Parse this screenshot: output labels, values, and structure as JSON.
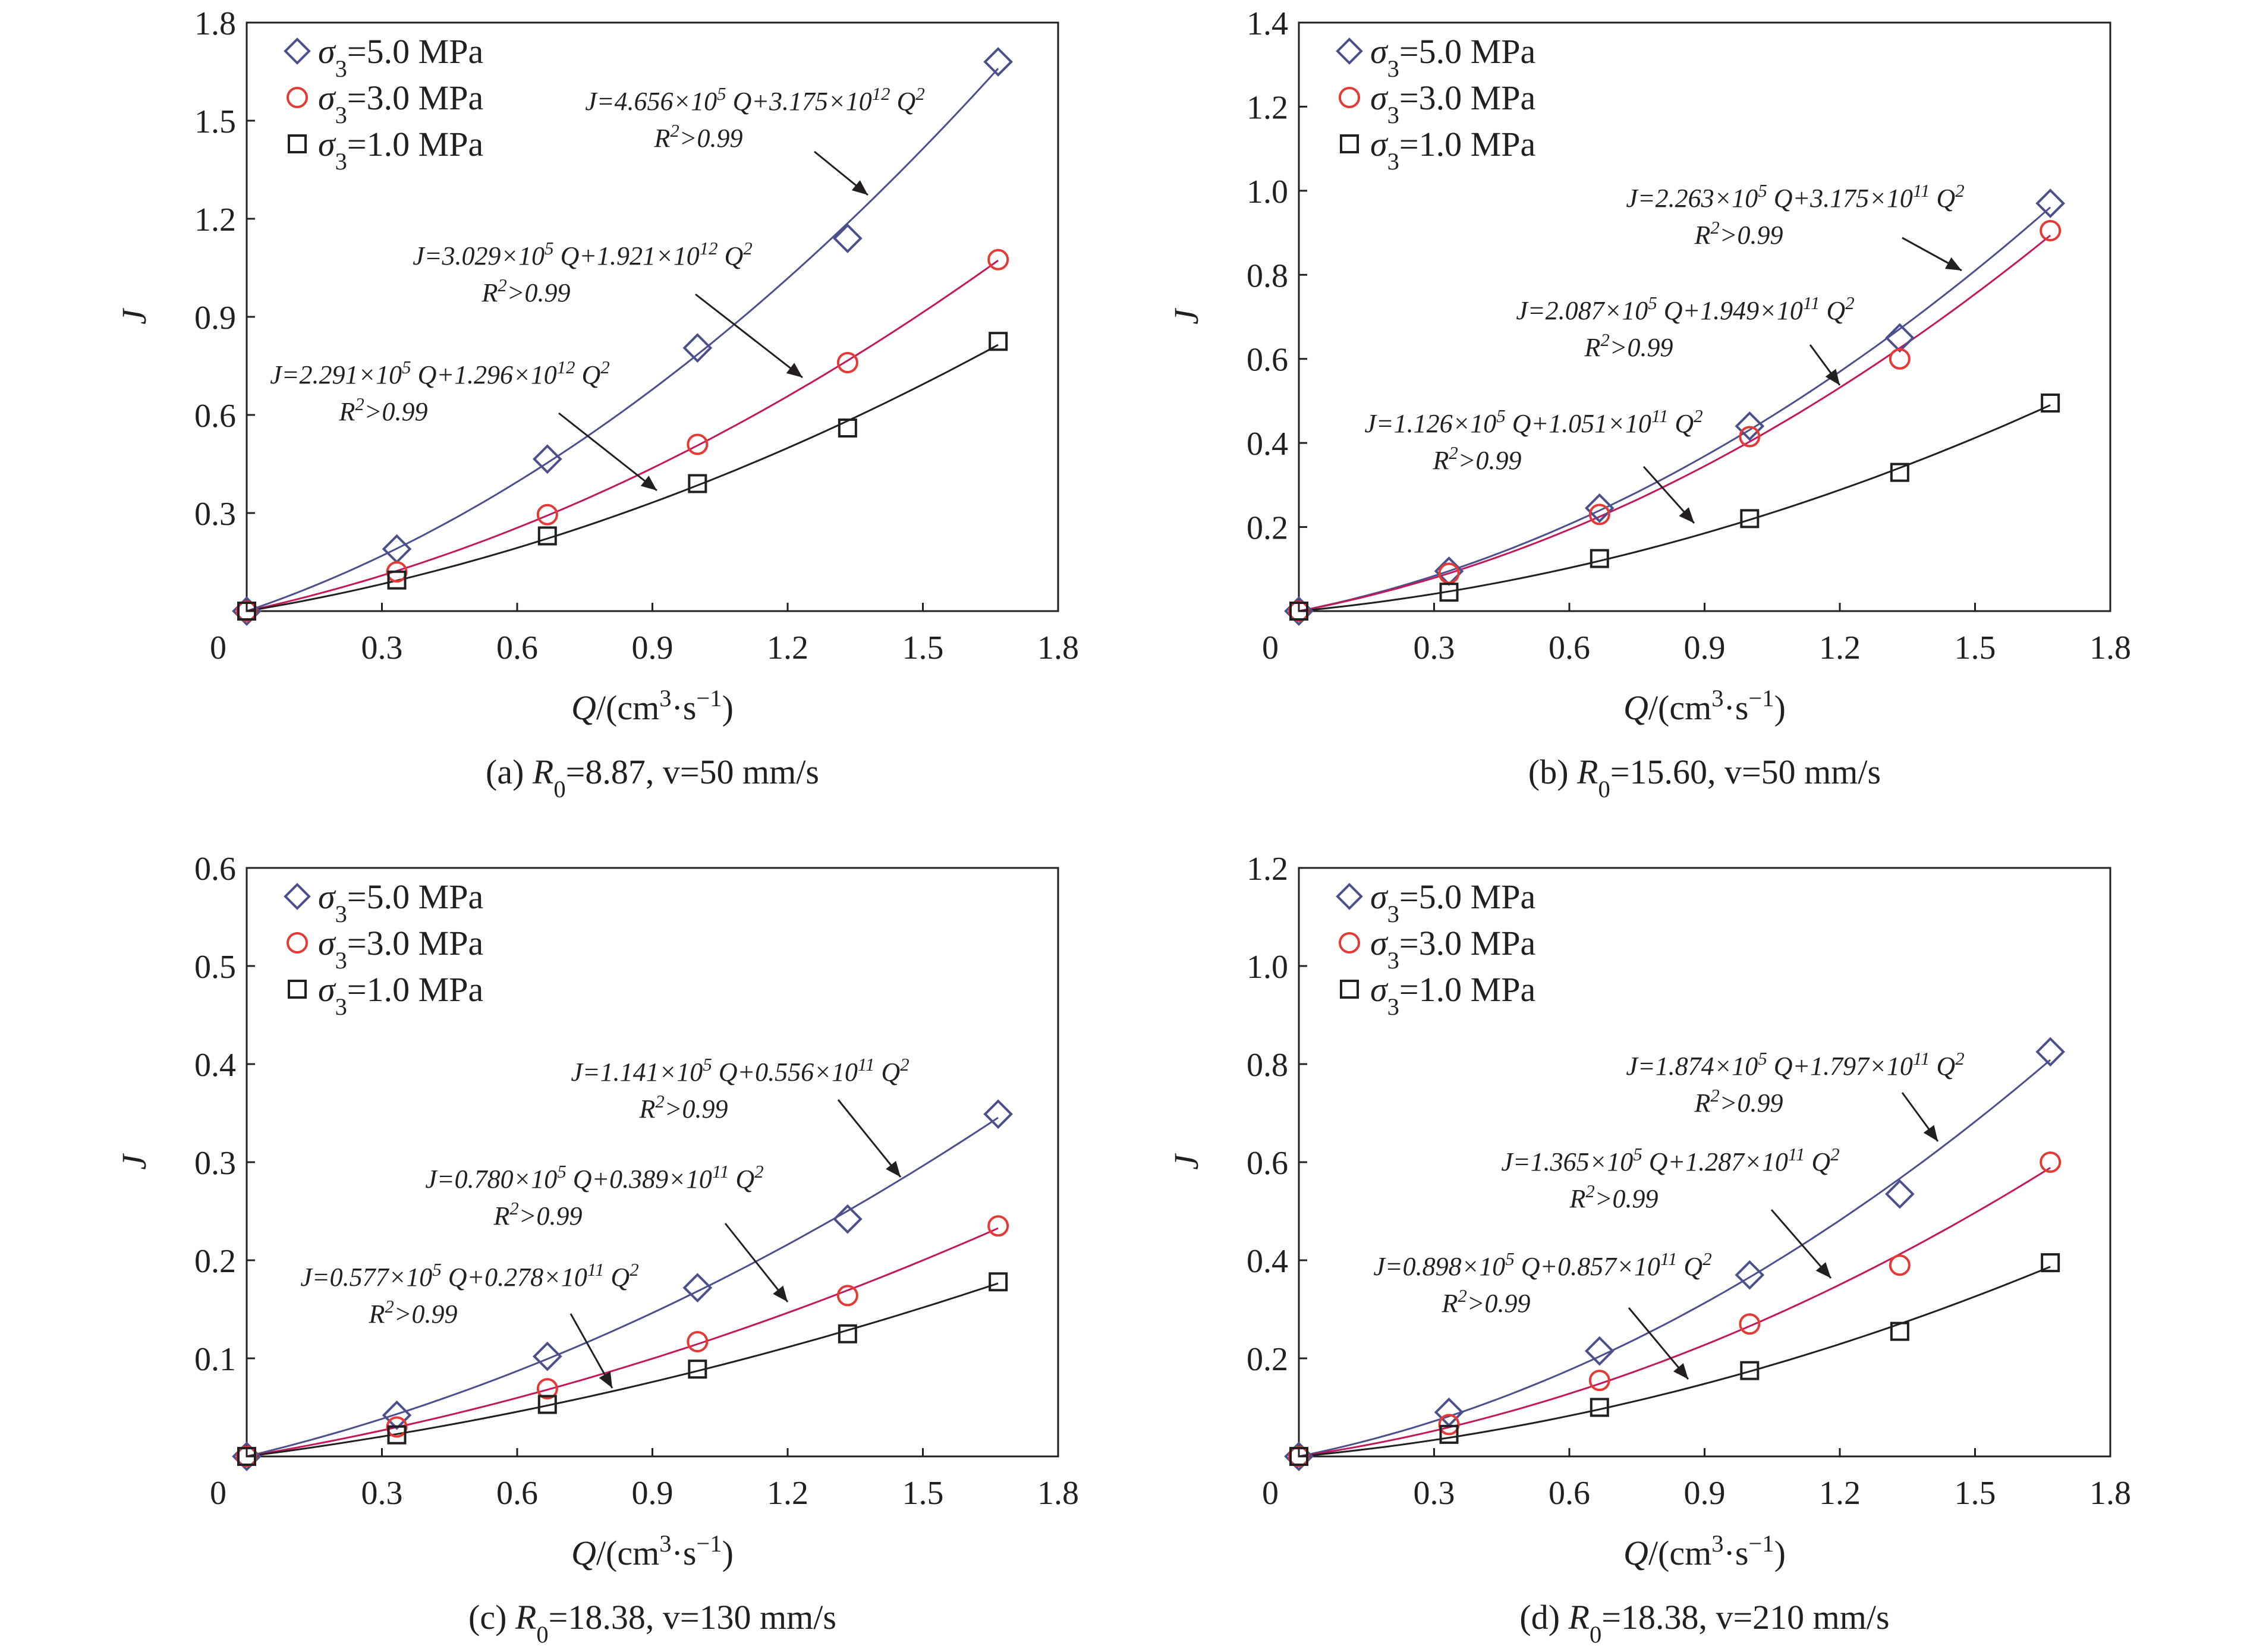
{
  "figure": {
    "panels": [
      {
        "caption": "(a) R0=8.87, v=50 mm/s",
        "xlabel": "Q/(cm³·s⁻¹)",
        "ylabel": "J",
        "x_ticks": [
          "0",
          "0.3",
          "0.6",
          "0.9",
          "1.2",
          "1.5",
          "1.8"
        ],
        "y_ticks": [
          "0.3",
          "0.6",
          "0.9",
          "1.2",
          "1.5",
          "1.8"
        ],
        "legend": [
          "σ3=5.0 MPa",
          "σ3=3.0 MPa",
          "σ3=1.0 MPa"
        ],
        "fits": [
          {
            "equation": "J=4.656×10⁵ Q+3.175×10¹² Q²",
            "r2": "R²>0.99"
          },
          {
            "equation": "J=3.029×10⁵ Q+1.921×10¹² Q²",
            "r2": "R²>0.99"
          },
          {
            "equation": "J=2.291×10⁵ Q+1.296×10¹² Q²",
            "r2": "R²>0.99"
          }
        ]
      },
      {
        "caption": "(b) R0=15.60, v=50 mm/s",
        "xlabel": "Q/(cm³·s⁻¹)",
        "ylabel": "J",
        "x_ticks": [
          "0",
          "0.3",
          "0.6",
          "0.9",
          "1.2",
          "1.5",
          "1.8"
        ],
        "y_ticks": [
          "0.2",
          "0.4",
          "0.6",
          "0.8",
          "1.0",
          "1.2",
          "1.4"
        ],
        "legend": [
          "σ3=5.0 MPa",
          "σ3=3.0 MPa",
          "σ3=1.0 MPa"
        ],
        "fits": [
          {
            "equation": "J=2.263×10⁵ Q+3.175×10¹¹ Q²",
            "r2": "R²>0.99"
          },
          {
            "equation": "J=2.087×10⁵ Q+1.949×10¹¹ Q²",
            "r2": "R²>0.99"
          },
          {
            "equation": "J=1.126×10⁵ Q+1.051×10¹¹ Q²",
            "r2": "R²>0.99"
          }
        ]
      },
      {
        "caption": "(c) R0=18.38, v=130 mm/s",
        "xlabel": "Q/(cm³·s⁻¹)",
        "ylabel": "J",
        "x_ticks": [
          "0",
          "0.3",
          "0.6",
          "0.9",
          "1.2",
          "1.5",
          "1.8"
        ],
        "y_ticks": [
          "0.1",
          "0.2",
          "0.3",
          "0.4",
          "0.5",
          "0.6"
        ],
        "legend": [
          "σ3=5.0 MPa",
          "σ3=3.0 MPa",
          "σ3=1.0 MPa"
        ],
        "fits": [
          {
            "equation": "J=1.141×10⁵ Q+0.556×10¹¹ Q²",
            "r2": "R²>0.99"
          },
          {
            "equation": "J=0.780×10⁵ Q+0.389×10¹¹ Q²",
            "r2": "R²>0.99"
          },
          {
            "equation": "J=0.577×10⁵ Q+0.278×10¹¹ Q²",
            "r2": "R²>0.99"
          }
        ]
      },
      {
        "caption": "(d) R0=18.38, v=210 mm/s",
        "xlabel": "Q/(cm³·s⁻¹)",
        "ylabel": "J",
        "x_ticks": [
          "0",
          "0.3",
          "0.6",
          "0.9",
          "1.2",
          "1.5",
          "1.8"
        ],
        "y_ticks": [
          "0.2",
          "0.4",
          "0.6",
          "0.8",
          "1.0",
          "1.2"
        ],
        "legend": [
          "σ3=5.0 MPa",
          "σ3=3.0 MPa",
          "σ3=1.0 MPa"
        ],
        "fits": [
          {
            "equation": "J=1.874×10⁵ Q+1.797×10¹¹ Q²",
            "r2": "R²>0.99"
          },
          {
            "equation": "J=1.365×10⁵ Q+1.287×10¹¹ Q²",
            "r2": "R²>0.99"
          },
          {
            "equation": "J=0.898×10⁵ Q+0.857×10¹¹ Q²",
            "r2": "R²>0.99"
          }
        ]
      }
    ]
  },
  "chart_data": [
    {
      "type": "scatter",
      "title": "(a) R0=8.87, v=50 mm/s",
      "xlabel": "Q/(cm³·s⁻¹)",
      "ylabel": "J",
      "xlim": [
        0,
        1.8
      ],
      "ylim": [
        0,
        1.8
      ],
      "grid": false,
      "legend_position": "top-left",
      "x": [
        0,
        0.333,
        0.667,
        1.0,
        1.333,
        1.667
      ],
      "series": [
        {
          "name": "σ3=5.0 MPa",
          "marker": "diamond",
          "color": "#4b4f8c",
          "values": [
            0,
            0.19,
            0.465,
            0.805,
            1.14,
            1.68
          ]
        },
        {
          "name": "σ3=3.0 MPa",
          "marker": "circle",
          "color": "#e53935",
          "values": [
            0,
            0.12,
            0.295,
            0.51,
            0.76,
            1.075
          ]
        },
        {
          "name": "σ3=1.0 MPa",
          "marker": "square",
          "color": "#231f20",
          "values": [
            0,
            0.095,
            0.23,
            0.39,
            0.56,
            0.825
          ]
        }
      ],
      "annotations": [
        "J=4.656×10⁵ Q+3.175×10¹² Q²  R²>0.99",
        "J=3.029×10⁵ Q+1.921×10¹² Q²  R²>0.99",
        "J=2.291×10⁵ Q+1.296×10¹² Q²  R²>0.99"
      ]
    },
    {
      "type": "scatter",
      "title": "(b) R0=15.60, v=50 mm/s",
      "xlabel": "Q/(cm³·s⁻¹)",
      "ylabel": "J",
      "xlim": [
        0,
        1.8
      ],
      "ylim": [
        0,
        1.4
      ],
      "grid": false,
      "legend_position": "top-left",
      "x": [
        0,
        0.333,
        0.667,
        1.0,
        1.333,
        1.667
      ],
      "series": [
        {
          "name": "σ3=5.0 MPa",
          "marker": "diamond",
          "color": "#4b4f8c",
          "values": [
            0,
            0.095,
            0.245,
            0.44,
            0.65,
            0.97
          ]
        },
        {
          "name": "σ3=3.0 MPa",
          "marker": "circle",
          "color": "#e53935",
          "values": [
            0,
            0.09,
            0.23,
            0.415,
            0.6,
            0.905
          ]
        },
        {
          "name": "σ3=1.0 MPa",
          "marker": "square",
          "color": "#231f20",
          "values": [
            0,
            0.045,
            0.125,
            0.22,
            0.33,
            0.495
          ]
        }
      ],
      "annotations": [
        "J=2.263×10⁵ Q+3.175×10¹¹ Q²  R²>0.99",
        "J=2.087×10⁵ Q+1.949×10¹¹ Q²  R²>0.99",
        "J=1.126×10⁵ Q+1.051×10¹¹ Q²  R²>0.99"
      ]
    },
    {
      "type": "scatter",
      "title": "(c) R0=18.38, v=130 mm/s",
      "xlabel": "Q/(cm³·s⁻¹)",
      "ylabel": "J",
      "xlim": [
        0,
        1.8
      ],
      "ylim": [
        0,
        0.6
      ],
      "grid": false,
      "legend_position": "top-left",
      "x": [
        0,
        0.333,
        0.667,
        1.0,
        1.333,
        1.667
      ],
      "series": [
        {
          "name": "σ3=5.0 MPa",
          "marker": "diamond",
          "color": "#4b4f8c",
          "values": [
            0,
            0.042,
            0.102,
            0.172,
            0.242,
            0.349
          ]
        },
        {
          "name": "σ3=3.0 MPa",
          "marker": "circle",
          "color": "#e53935",
          "values": [
            0,
            0.03,
            0.069,
            0.117,
            0.164,
            0.235
          ]
        },
        {
          "name": "σ3=1.0 MPa",
          "marker": "square",
          "color": "#231f20",
          "values": [
            0,
            0.022,
            0.053,
            0.089,
            0.125,
            0.178
          ]
        }
      ],
      "annotations": [
        "J=1.141×10⁵ Q+0.556×10¹¹ Q²  R²>0.99",
        "J=0.780×10⁵ Q+0.389×10¹¹ Q²  R²>0.99",
        "J=0.577×10⁵ Q+0.278×10¹¹ Q²  R²>0.99"
      ]
    },
    {
      "type": "scatter",
      "title": "(d) R0=18.38, v=210 mm/s",
      "xlabel": "Q/(cm³·s⁻¹)",
      "ylabel": "J",
      "xlim": [
        0,
        1.8
      ],
      "ylim": [
        0,
        1.2
      ],
      "grid": false,
      "legend_position": "top-left",
      "x": [
        0,
        0.333,
        0.667,
        1.0,
        1.333,
        1.667
      ],
      "series": [
        {
          "name": "σ3=5.0 MPa",
          "marker": "diamond",
          "color": "#4b4f8c",
          "values": [
            0,
            0.09,
            0.215,
            0.37,
            0.535,
            0.825
          ]
        },
        {
          "name": "σ3=3.0 MPa",
          "marker": "circle",
          "color": "#e53935",
          "values": [
            0,
            0.065,
            0.155,
            0.27,
            0.39,
            0.6
          ]
        },
        {
          "name": "σ3=1.0 MPa",
          "marker": "square",
          "color": "#231f20",
          "values": [
            0,
            0.045,
            0.1,
            0.175,
            0.255,
            0.395
          ]
        }
      ],
      "annotations": [
        "J=1.874×10⁵ Q+1.797×10¹¹ Q²  R²>0.99",
        "J=1.365×10⁵ Q+1.287×10¹¹ Q²  R²>0.99",
        "J=0.898×10⁵ Q+0.857×10¹¹ Q²  R²>0.99"
      ]
    }
  ]
}
